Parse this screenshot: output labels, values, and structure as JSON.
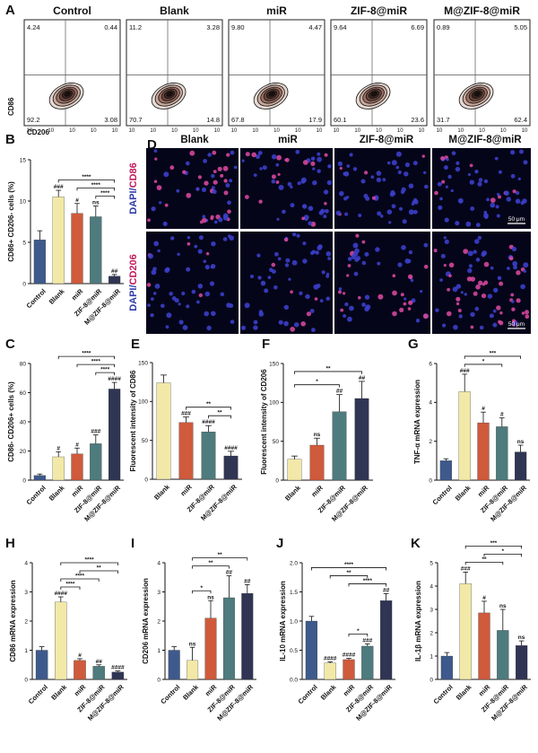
{
  "colors": {
    "Control": "#3e5a8c",
    "Blank": "#f2e9a8",
    "miR": "#cf5a3c",
    "ZIF-8@miR": "#4e7b7d",
    "M@ZIF-8@miR": "#2f3553"
  },
  "flow": {
    "label": "A",
    "ylabel": "CD86",
    "xlabel": "CD206",
    "xtick": "10",
    "ytick": "10",
    "panels": [
      {
        "title": "Control",
        "q": [
          "4.24",
          "0.44",
          "92.2",
          "3.08"
        ]
      },
      {
        "title": "Blank",
        "q": [
          "11.2",
          "3.28",
          "70.7",
          "14.8"
        ]
      },
      {
        "title": "miR",
        "q": [
          "9.80",
          "4.47",
          "67.8",
          "17.9"
        ]
      },
      {
        "title": "ZIF-8@miR",
        "q": [
          "9.64",
          "6.69",
          "60.1",
          "23.6"
        ]
      },
      {
        "title": "M@ZIF-8@miR",
        "q": [
          "0.89",
          "5.05",
          "31.7",
          "62.4"
        ]
      }
    ]
  },
  "images": {
    "label": "D",
    "columns": [
      "Blank",
      "miR",
      "ZIF-8@miR",
      "M@ZIF-8@miR"
    ],
    "rows": [
      {
        "prefix": "DAPI/",
        "stain": "CD86",
        "scale": "50 μm"
      },
      {
        "prefix": "DAPI/",
        "stain": "CD206",
        "scale": "50 μm"
      }
    ]
  },
  "chart_data": [
    {
      "id": "B",
      "type": "bar",
      "ylabel": "CD86+ CD206- cells (%)",
      "ylim": [
        0,
        15
      ],
      "ticks": [
        0,
        5,
        10,
        15
      ],
      "categories": [
        "Control",
        "Blank",
        "miR",
        "ZIF-8@miR",
        "M@ZIF-8@miR"
      ],
      "values": [
        5.3,
        10.5,
        8.5,
        8.1,
        0.9
      ],
      "errors": [
        1.1,
        0.8,
        1.2,
        1.3,
        0.2
      ],
      "marks": [
        "",
        "###",
        "#",
        "ns",
        "##"
      ],
      "brackets": [
        {
          "from": 1,
          "to": 4,
          "label": "****"
        },
        {
          "from": 2,
          "to": 4,
          "label": "****"
        },
        {
          "from": 3,
          "to": 4,
          "label": "****"
        }
      ]
    },
    {
      "id": "C",
      "type": "bar",
      "ylabel": "CD86- CD206+ cells (%)",
      "ylim": [
        0,
        80
      ],
      "ticks": [
        0,
        20,
        40,
        60,
        80
      ],
      "categories": [
        "Control",
        "Blank",
        "miR",
        "ZIF-8@miR",
        "M@ZIF-8@miR"
      ],
      "values": [
        3.2,
        16,
        18,
        25,
        62.5
      ],
      "errors": [
        1.0,
        3.5,
        4.0,
        6.0,
        4.5
      ],
      "marks": [
        "",
        "#",
        "#",
        "###",
        "####"
      ],
      "brackets": [
        {
          "from": 1,
          "to": 4,
          "label": "****"
        },
        {
          "from": 2,
          "to": 4,
          "label": "****"
        },
        {
          "from": 3,
          "to": 4,
          "label": "****"
        }
      ]
    },
    {
      "id": "E",
      "type": "bar",
      "ylabel": "Fluorescent intensity of CD86",
      "ylim": [
        0,
        150
      ],
      "ticks": [
        0,
        50,
        100,
        150
      ],
      "categories": [
        "Blank",
        "miR",
        "ZIF-8@miR",
        "M@ZIF-8@miR"
      ],
      "values": [
        124,
        73,
        61,
        30
      ],
      "errors": [
        10,
        7,
        8,
        6
      ],
      "marks": [
        "",
        "###",
        "####",
        "####"
      ],
      "brackets": [
        {
          "from": 1,
          "to": 3,
          "label": "**"
        },
        {
          "from": 2,
          "to": 3,
          "label": "**"
        }
      ]
    },
    {
      "id": "F",
      "type": "bar",
      "ylabel": "Fluorescent intensity of CD206",
      "ylim": [
        0,
        150
      ],
      "ticks": [
        0,
        50,
        100,
        150
      ],
      "categories": [
        "Blank",
        "miR",
        "ZIF-8@miR",
        "M@ZIF-8@miR"
      ],
      "values": [
        27,
        45,
        88,
        105
      ],
      "errors": [
        4,
        9,
        22,
        22
      ],
      "marks": [
        "",
        "ns",
        "##",
        "##"
      ],
      "brackets": [
        {
          "from": 0,
          "to": 3,
          "label": "**"
        },
        {
          "from": 0,
          "to": 2,
          "label": "*"
        }
      ]
    },
    {
      "id": "G",
      "type": "bar",
      "ylabel": "TNF-α mRNA expression",
      "ylim": [
        0,
        6
      ],
      "ticks": [
        0,
        2,
        4,
        6
      ],
      "categories": [
        "Control",
        "Blank",
        "miR",
        "ZIF-8@miR",
        "M@ZIF-8@miR"
      ],
      "values": [
        1.0,
        4.55,
        2.95,
        2.75,
        1.45
      ],
      "errors": [
        0.1,
        0.9,
        0.55,
        0.45,
        0.35
      ],
      "marks": [
        "",
        "###",
        "#",
        "#",
        "ns"
      ],
      "brackets": [
        {
          "from": 1,
          "to": 4,
          "label": "***"
        },
        {
          "from": 1,
          "to": 3,
          "label": "*"
        }
      ]
    },
    {
      "id": "H",
      "type": "bar",
      "ylabel": "CD86 mRNA expression",
      "ylim": [
        0,
        4
      ],
      "ticks": [
        0,
        1,
        2,
        3,
        4
      ],
      "categories": [
        "Control",
        "Blank",
        "miR",
        "ZIF-8@miR",
        "M@ZIF-8@miR"
      ],
      "values": [
        1.0,
        2.65,
        0.65,
        0.45,
        0.25
      ],
      "errors": [
        0.12,
        0.18,
        0.06,
        0.05,
        0.04
      ],
      "marks": [
        "",
        "####",
        "#",
        "##",
        "####"
      ],
      "brackets": [
        {
          "from": 1,
          "to": 4,
          "label": "****"
        },
        {
          "from": 1,
          "to": 3,
          "label": "****"
        },
        {
          "from": 1,
          "to": 2,
          "label": "****"
        },
        {
          "from": 2,
          "to": 4,
          "label": "**"
        }
      ]
    },
    {
      "id": "I",
      "type": "bar",
      "ylabel": "CD206 mRNA expression",
      "ylim": [
        0,
        4
      ],
      "ticks": [
        0,
        1,
        2,
        3,
        4
      ],
      "categories": [
        "Control",
        "Blank",
        "miR",
        "ZIF-8@miR",
        "M@ZIF-8@miR"
      ],
      "values": [
        1.0,
        0.65,
        2.1,
        2.8,
        2.95
      ],
      "errors": [
        0.12,
        0.45,
        0.6,
        0.75,
        0.3
      ],
      "marks": [
        "",
        "ns",
        "ns",
        "##",
        "##"
      ],
      "brackets": [
        {
          "from": 1,
          "to": 4,
          "label": "**"
        },
        {
          "from": 1,
          "to": 3,
          "label": "**"
        },
        {
          "from": 1,
          "to": 2,
          "label": "*"
        }
      ]
    },
    {
      "id": "J",
      "type": "bar",
      "ylabel": "IL-10 mRNA expression",
      "ylim": [
        0,
        2.0
      ],
      "ticks": [
        0.0,
        0.5,
        1.0,
        1.5,
        2.0
      ],
      "categories": [
        "Control",
        "Blank",
        "miR",
        "ZIF-8@miR",
        "M@ZIF-8@miR"
      ],
      "values": [
        1.0,
        0.28,
        0.34,
        0.57,
        1.35
      ],
      "errors": [
        0.08,
        0.02,
        0.02,
        0.04,
        0.12
      ],
      "marks": [
        "",
        "####",
        "####",
        "###",
        "##"
      ],
      "brackets": [
        {
          "from": 0,
          "to": 4,
          "label": "****"
        },
        {
          "from": 2,
          "to": 4,
          "label": "****"
        },
        {
          "from": 1,
          "to": 3,
          "label": "**"
        },
        {
          "from": 2,
          "to": 3,
          "label": "*"
        }
      ]
    },
    {
      "id": "K",
      "type": "bar",
      "ylabel": "IL-1β mRNA expression",
      "ylim": [
        0,
        5
      ],
      "ticks": [
        0,
        1,
        2,
        3,
        4,
        5
      ],
      "categories": [
        "Control",
        "Blank",
        "miR",
        "ZIF-8@miR",
        "M@ZIF-8@miR"
      ],
      "values": [
        1.0,
        4.1,
        2.85,
        2.1,
        1.45
      ],
      "errors": [
        0.15,
        0.5,
        0.5,
        0.9,
        0.2
      ],
      "marks": [
        "",
        "###",
        "#",
        "ns",
        "ns"
      ],
      "brackets": [
        {
          "from": 1,
          "to": 4,
          "label": "***"
        },
        {
          "from": 1,
          "to": 3,
          "label": "**"
        },
        {
          "from": 2,
          "to": 4,
          "label": "*"
        }
      ]
    }
  ]
}
